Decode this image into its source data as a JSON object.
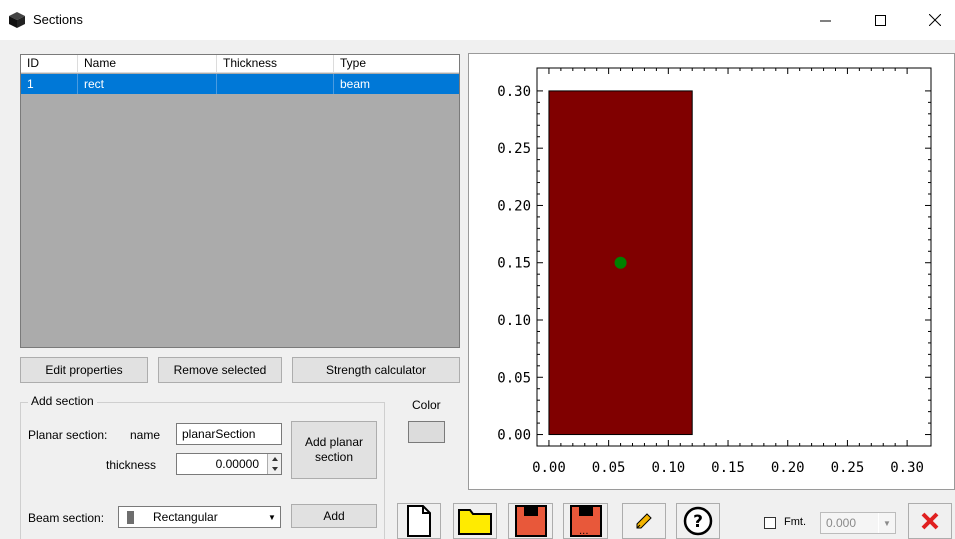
{
  "window": {
    "title": "Sections"
  },
  "list": {
    "columns": [
      "ID",
      "Name",
      "Thickness",
      "Type"
    ],
    "rows": [
      {
        "id": "1",
        "name": "rect",
        "thickness": "",
        "type": "beam"
      }
    ]
  },
  "buttons": {
    "edit": "Edit properties",
    "remove": "Remove selected",
    "strength": "Strength calculator",
    "add_planar": "Add planar section",
    "add": "Add"
  },
  "add_section": {
    "title": "Add section",
    "planar_label": "Planar section:",
    "name_label": "name",
    "name_value": "planarSection",
    "thickness_label": "thickness",
    "thickness_value": "0.00000",
    "color_label": "Color",
    "beam_label": "Beam section:",
    "beam_value": "Rectangular"
  },
  "toolbar": {
    "fmt_label": "Fmt.",
    "fmt_value": "0.000",
    "fmt_checked": false
  },
  "chart_data": {
    "type": "scatter",
    "xlim": [
      -0.01,
      0.32
    ],
    "ylim": [
      -0.01,
      0.32
    ],
    "xticks": [
      "0.00",
      "0.05",
      "0.10",
      "0.15",
      "0.20",
      "0.25",
      "0.30"
    ],
    "yticks": [
      "0.00",
      "0.05",
      "0.10",
      "0.15",
      "0.20",
      "0.25",
      "0.30"
    ],
    "rectangle": {
      "x0": 0.0,
      "y0": 0.0,
      "x1": 0.12,
      "y1": 0.3,
      "color": "#800000"
    },
    "centroid": {
      "x": 0.06,
      "y": 0.15,
      "color": "#008000"
    }
  }
}
